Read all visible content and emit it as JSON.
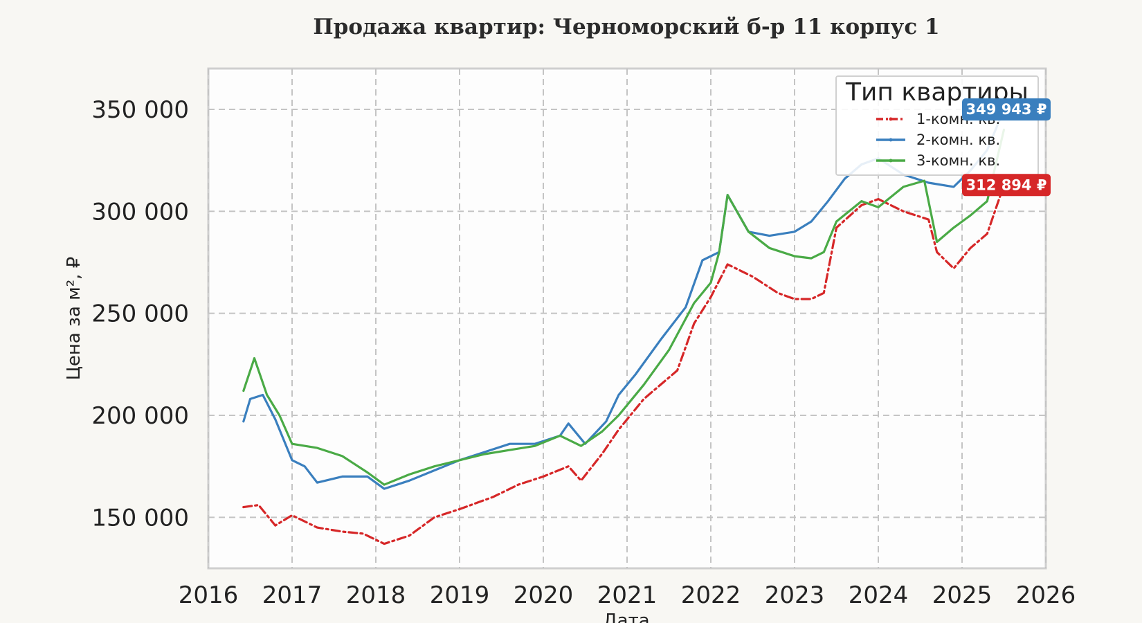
{
  "chart_data": {
    "type": "line",
    "title": "Продажа квартир: Черноморский б-р 11 корпус 1",
    "xlabel": "Дата",
    "ylabel": "Цена за м², ₽",
    "xlim": [
      2016.0,
      2026.0
    ],
    "ylim": [
      125000,
      370000
    ],
    "x_ticks": [
      "2016",
      "2017",
      "2018",
      "2019",
      "2020",
      "2021",
      "2022",
      "2023",
      "2024",
      "2025",
      "2026"
    ],
    "y_ticks": [
      150000,
      200000,
      250000,
      300000,
      350000
    ],
    "y_tick_labels": [
      "150 000",
      "200 000",
      "250 000",
      "300 000",
      "350 000"
    ],
    "grid": true,
    "legend": {
      "title": "Тип квартиры",
      "placement": "top-right"
    },
    "series": [
      {
        "name": "1-комн. кв.",
        "color": "#d62728",
        "style": "dashdot",
        "end_label": "312 894 ₽",
        "x": [
          2016.42,
          2016.6,
          2016.8,
          2017.0,
          2017.3,
          2017.6,
          2017.85,
          2018.1,
          2018.4,
          2018.7,
          2019.0,
          2019.4,
          2019.7,
          2020.0,
          2020.3,
          2020.45,
          2020.7,
          2020.9,
          2021.2,
          2021.6,
          2021.8,
          2022.0,
          2022.2,
          2022.5,
          2022.8,
          2023.0,
          2023.2,
          2023.35,
          2023.5,
          2023.8,
          2024.0,
          2024.3,
          2024.6,
          2024.7,
          2024.9,
          2025.1,
          2025.3,
          2025.5
        ],
        "y": [
          155000,
          156000,
          146000,
          151000,
          145000,
          143000,
          142000,
          137000,
          141000,
          150000,
          154000,
          160000,
          166000,
          170000,
          175000,
          168000,
          181000,
          193000,
          208000,
          222000,
          245000,
          258000,
          274000,
          268000,
          260000,
          257000,
          257000,
          260000,
          292000,
          303000,
          306000,
          300000,
          296000,
          280000,
          272000,
          282000,
          289000,
          312894
        ]
      },
      {
        "name": "2-комн. кв.",
        "color": "#3a7fbe",
        "style": "solid",
        "end_label": "349 943 ₽",
        "x": [
          2016.42,
          2016.5,
          2016.65,
          2016.8,
          2017.0,
          2017.15,
          2017.3,
          2017.6,
          2017.9,
          2018.1,
          2018.4,
          2018.7,
          2019.0,
          2019.3,
          2019.6,
          2019.9,
          2020.2,
          2020.3,
          2020.5,
          2020.75,
          2020.9,
          2021.1,
          2021.4,
          2021.7,
          2021.9,
          2022.1,
          2022.2,
          2022.45,
          2022.7,
          2023.0,
          2023.2,
          2023.4,
          2023.6,
          2023.8,
          2024.0,
          2024.3,
          2024.6,
          2024.9,
          2025.1,
          2025.3,
          2025.5
        ],
        "y": [
          197000,
          208000,
          210000,
          198000,
          178000,
          175000,
          167000,
          170000,
          170000,
          164000,
          168000,
          173000,
          178000,
          182000,
          186000,
          186000,
          190000,
          196000,
          186000,
          197000,
          210000,
          220000,
          237000,
          253000,
          276000,
          280000,
          308000,
          290000,
          288000,
          290000,
          295000,
          305000,
          316000,
          323000,
          326000,
          318000,
          314000,
          312000,
          320000,
          330000,
          349943
        ]
      },
      {
        "name": "3-комн. кв.",
        "color": "#4aaa46",
        "style": "solid",
        "end_label": "",
        "x": [
          2016.42,
          2016.55,
          2016.7,
          2016.85,
          2017.0,
          2017.3,
          2017.6,
          2017.9,
          2018.1,
          2018.4,
          2018.7,
          2019.0,
          2019.3,
          2019.6,
          2019.9,
          2020.2,
          2020.45,
          2020.7,
          2020.9,
          2021.2,
          2021.5,
          2021.8,
          2022.0,
          2022.1,
          2022.2,
          2022.45,
          2022.7,
          2023.0,
          2023.2,
          2023.35,
          2023.5,
          2023.8,
          2024.0,
          2024.3,
          2024.55,
          2024.7,
          2024.9,
          2025.1,
          2025.3,
          2025.5
        ],
        "y": [
          212000,
          228000,
          210000,
          200000,
          186000,
          184000,
          180000,
          172000,
          166000,
          171000,
          175000,
          178000,
          181000,
          183000,
          185000,
          190000,
          185000,
          192000,
          200000,
          215000,
          232000,
          255000,
          265000,
          280000,
          308000,
          290000,
          282000,
          278000,
          277000,
          280000,
          295000,
          305000,
          302000,
          312000,
          315000,
          285000,
          292000,
          298000,
          305000,
          340000
        ]
      }
    ]
  }
}
